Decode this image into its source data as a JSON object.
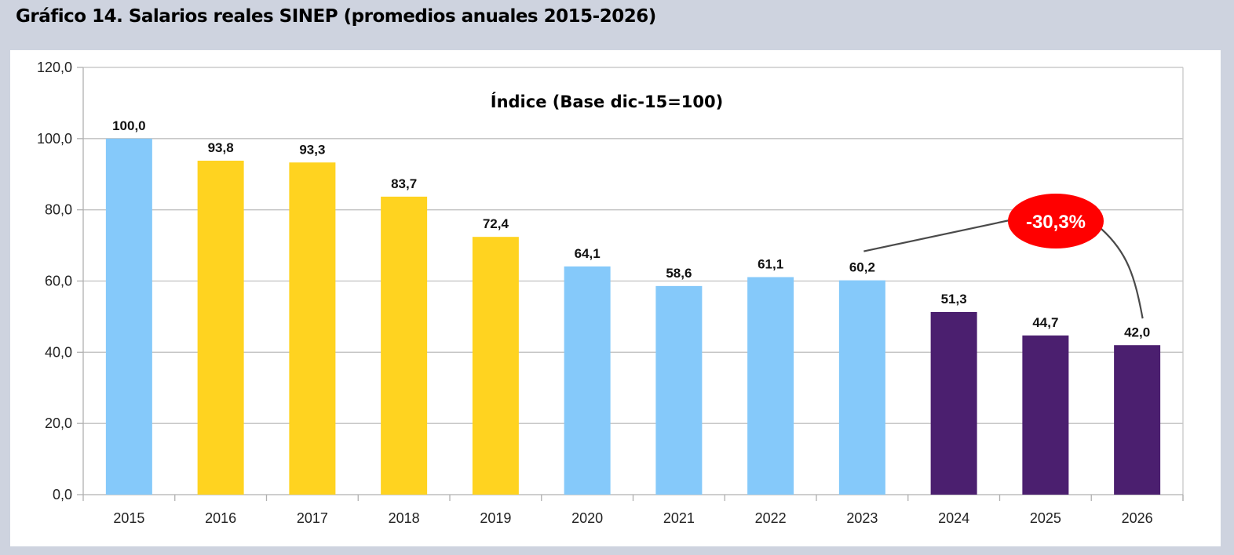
{
  "page": {
    "title": "Gráfico 14.  Salarios reales SINEP (promedios anuales 2015-2026)"
  },
  "chart_data": {
    "type": "bar",
    "title": "Índice (Base dic-15=100)",
    "xlabel": "",
    "ylabel": "",
    "ylim": [
      0,
      120
    ],
    "yticks": [
      0,
      20,
      40,
      60,
      80,
      100,
      120
    ],
    "ytick_labels": [
      "0,0",
      "20,0",
      "40,0",
      "60,0",
      "80,0",
      "100,0",
      "120,0"
    ],
    "grid": true,
    "categories": [
      "2015",
      "2016",
      "2017",
      "2018",
      "2019",
      "2020",
      "2021",
      "2022",
      "2023",
      "2024",
      "2025",
      "2026"
    ],
    "values": [
      100.0,
      93.8,
      93.3,
      83.7,
      72.4,
      64.1,
      58.6,
      61.1,
      60.2,
      51.3,
      44.7,
      42.0
    ],
    "value_labels": [
      "100,0",
      "93,8",
      "93,3",
      "83,7",
      "72,4",
      "64,1",
      "58,6",
      "61,1",
      "60,2",
      "51,3",
      "44,7",
      "42,0"
    ],
    "bar_color_groups": [
      "blue",
      "yellow",
      "yellow",
      "yellow",
      "yellow",
      "blue",
      "blue",
      "blue",
      "blue",
      "purple",
      "purple",
      "purple"
    ],
    "colors": {
      "blue": "#85C9FA",
      "yellow": "#FFD320",
      "purple": "#4B1F6F"
    },
    "annotation": {
      "text": "-30,3%",
      "from_category": "2023",
      "to_category": "2026",
      "color": "#FF0000"
    }
  }
}
